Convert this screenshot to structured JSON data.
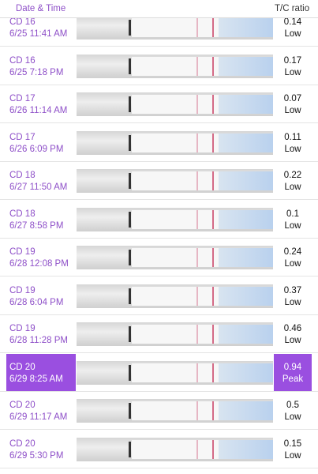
{
  "header": {
    "date_time": "Date & Time",
    "ratio": "T/C ratio"
  },
  "rows": [
    {
      "cd": "CD 16",
      "date": "6/25 11:41 AM",
      "ratio": 0.14,
      "level": "Low"
    },
    {
      "cd": "CD 16",
      "date": "6/25 7:18 PM",
      "ratio": 0.17,
      "level": "Low"
    },
    {
      "cd": "CD 17",
      "date": "6/26 11:14 AM",
      "ratio": 0.07,
      "level": "Low"
    },
    {
      "cd": "CD 17",
      "date": "6/26 6:09 PM",
      "ratio": 0.11,
      "level": "Low"
    },
    {
      "cd": "CD 18",
      "date": "6/27 11:50 AM",
      "ratio": 0.22,
      "level": "Low"
    },
    {
      "cd": "CD 18",
      "date": "6/27 8:58 PM",
      "ratio": 0.1,
      "level": "Low"
    },
    {
      "cd": "CD 19",
      "date": "6/28 12:08 PM",
      "ratio": 0.24,
      "level": "Low"
    },
    {
      "cd": "CD 19",
      "date": "6/28 6:04 PM",
      "ratio": 0.37,
      "level": "Low"
    },
    {
      "cd": "CD 19",
      "date": "6/28 11:28 PM",
      "ratio": 0.46,
      "level": "Low"
    },
    {
      "cd": "CD 20",
      "date": "6/29 8:25 AM",
      "ratio": 0.94,
      "level": "Peak"
    },
    {
      "cd": "CD 20",
      "date": "6/29 11:17 AM",
      "ratio": 0.5,
      "level": "Low"
    },
    {
      "cd": "CD 20",
      "date": "6/29 5:30 PM",
      "ratio": 0.15,
      "level": "Low"
    }
  ]
}
